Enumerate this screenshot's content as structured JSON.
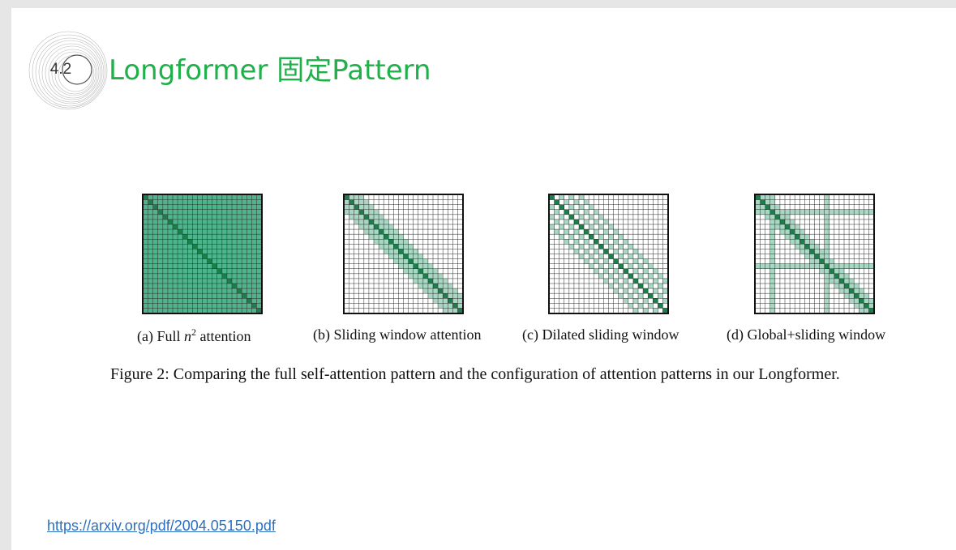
{
  "slide": {
    "section_number": "4.2",
    "title": "Longformer 固定Pattern",
    "link": "https://arxiv.org/pdf/2004.05150.pdf"
  },
  "figure": {
    "panels": [
      {
        "caption_prefix": "(a) Full ",
        "caption_math": "n",
        "caption_sup": "2",
        "caption_suffix": " attention",
        "pattern": "full"
      },
      {
        "caption": "(b) Sliding window attention",
        "pattern": "sliding"
      },
      {
        "caption": "(c) Dilated sliding window",
        "pattern": "dilated"
      },
      {
        "caption": "(d) Global+sliding window",
        "pattern": "global"
      }
    ],
    "caption": "Figure 2: Comparing the full self-attention pattern and the configuration of attention patterns in our Longformer.",
    "colors": {
      "light": "#a8d8c4",
      "medium": "#4db48c",
      "dark": "#1a7f4a",
      "grid": "#2a2a2a",
      "title": "#1fb04a",
      "link": "#2b6fc4"
    }
  }
}
